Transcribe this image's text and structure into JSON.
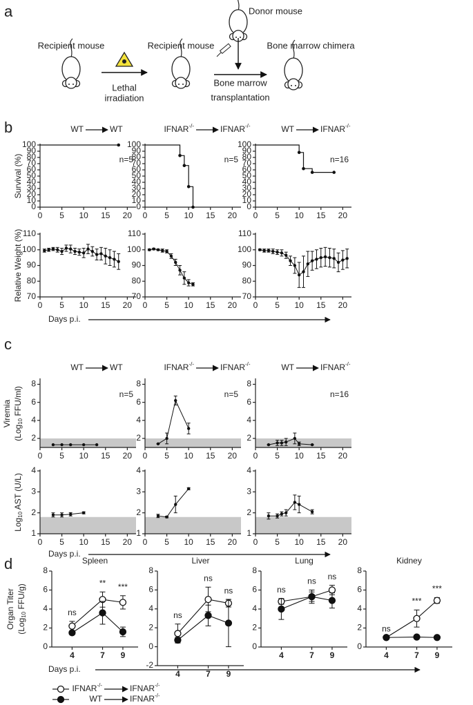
{
  "panel_labels": [
    "a",
    "b",
    "c",
    "d"
  ],
  "schematic": {
    "recipient_1": "Recipient mouse",
    "lethal": [
      "Lethal",
      "irradiation"
    ],
    "recipient_2": "Recipient mouse",
    "donor": "Donor mouse",
    "bmt": [
      "Bone marrow",
      "transplantation"
    ],
    "chimera": "Bone marrow chimera"
  },
  "groups": [
    {
      "from": [
        {
          "text": "WT"
        }
      ],
      "to": [
        {
          "text": "WT"
        }
      ]
    },
    {
      "from": [
        {
          "text": "IFNAR"
        },
        {
          "text": "-/-",
          "sup": true
        }
      ],
      "to": [
        {
          "text": "IFNAR"
        },
        {
          "text": "-/-",
          "sup": true
        }
      ]
    },
    {
      "from": [
        {
          "text": "WT"
        }
      ],
      "to": [
        {
          "text": "IFNAR"
        },
        {
          "text": "-/-",
          "sup": true
        }
      ]
    }
  ],
  "x_axis_label": "Days p.i.",
  "legend": [
    {
      "style": "open",
      "from": [
        {
          "text": "IFNAR"
        },
        {
          "text": "-/-",
          "sup": true
        }
      ],
      "to": [
        {
          "text": "IFNAR"
        },
        {
          "text": "-/-",
          "sup": true
        }
      ]
    },
    {
      "style": "filled",
      "from": [
        {
          "text": "WT"
        }
      ],
      "to": [
        {
          "text": "IFNAR"
        },
        {
          "text": "-/-",
          "sup": true
        }
      ]
    }
  ],
  "chart_data": [
    {
      "type": "step",
      "ylabel": [
        [
          {
            "text": "Survival (%)"
          }
        ]
      ],
      "x": [
        0,
        18
      ],
      "values": [
        100,
        100
      ],
      "xlim": [
        0,
        22
      ],
      "xticks": [
        0,
        5,
        10,
        15,
        20
      ],
      "ylim": [
        0,
        100
      ],
      "yticks": [
        0,
        10,
        20,
        30,
        40,
        50,
        60,
        70,
        80,
        90,
        100
      ],
      "annotation": "n=5"
    },
    {
      "type": "step",
      "x": [
        0,
        8,
        9,
        10,
        11
      ],
      "values": [
        100,
        83,
        67,
        33,
        0
      ],
      "xlim": [
        0,
        22
      ],
      "xticks": [
        0,
        5,
        10,
        15,
        20
      ],
      "ylim": [
        0,
        100
      ],
      "yticks": [
        0,
        10,
        20,
        30,
        40,
        50,
        60,
        70,
        80,
        90,
        100
      ],
      "annotation": "n=5"
    },
    {
      "type": "step",
      "x": [
        0,
        10,
        11,
        13,
        18
      ],
      "values": [
        100,
        88,
        62,
        56,
        56
      ],
      "xlim": [
        0,
        22
      ],
      "xticks": [
        0,
        5,
        10,
        15,
        20
      ],
      "ylim": [
        0,
        100
      ],
      "yticks": [
        0,
        10,
        20,
        30,
        40,
        50,
        60,
        70,
        80,
        90,
        100
      ],
      "annotation": "n=16"
    },
    {
      "type": "line",
      "ylabel": [
        [
          {
            "text": "Relative Weight (%)"
          }
        ]
      ],
      "x": [
        1,
        2,
        3,
        4,
        5,
        6,
        7,
        8,
        9,
        10,
        11,
        12,
        13,
        14,
        15,
        16,
        17,
        18
      ],
      "values": [
        99.5,
        100,
        100.5,
        100,
        99,
        101,
        100.5,
        99,
        98.5,
        98,
        100.5,
        99,
        97,
        97.5,
        96,
        95,
        94,
        92.5
      ],
      "errors": [
        1,
        1,
        1,
        1.5,
        2,
        2,
        2.5,
        2,
        2,
        3,
        3,
        3,
        3.5,
        4,
        5,
        5,
        5,
        5
      ],
      "xlim": [
        0,
        22
      ],
      "xticks": [
        0,
        5,
        10,
        15,
        20
      ],
      "ylim": [
        70,
        110
      ],
      "yticks": [
        70,
        80,
        90,
        100,
        110
      ]
    },
    {
      "type": "line",
      "x": [
        1,
        2,
        3,
        4,
        5,
        6,
        7,
        8,
        9,
        10,
        11
      ],
      "values": [
        100,
        100.5,
        100,
        99.5,
        99,
        96,
        92,
        87,
        82,
        79,
        78
      ],
      "errors": [
        0.5,
        0.5,
        0.5,
        1,
        1,
        1.5,
        2,
        3,
        4,
        2,
        1
      ],
      "xlim": [
        0,
        22
      ],
      "xticks": [
        0,
        5,
        10,
        15,
        20
      ],
      "ylim": [
        70,
        110
      ],
      "yticks": [
        70,
        80,
        90,
        100,
        110
      ]
    },
    {
      "type": "line",
      "x": [
        1,
        2,
        3,
        4,
        5,
        6,
        7,
        8,
        9,
        10,
        11,
        12,
        13,
        14,
        15,
        16,
        17,
        18,
        19,
        20,
        21
      ],
      "values": [
        100,
        99.5,
        99.5,
        99,
        98.5,
        98,
        96.5,
        93,
        90,
        84,
        86,
        91,
        93,
        94,
        95,
        95.5,
        95,
        94.5,
        92,
        93.5,
        94.5
      ],
      "errors": [
        0.5,
        1,
        1,
        1.5,
        1.5,
        2,
        2,
        3,
        5,
        8,
        10,
        8,
        6,
        6,
        6,
        6,
        6,
        6,
        6,
        6,
        6
      ],
      "xlim": [
        0,
        22
      ],
      "xticks": [
        0,
        5,
        10,
        15,
        20
      ],
      "ylim": [
        70,
        110
      ],
      "yticks": [
        70,
        80,
        90,
        100,
        110
      ]
    },
    {
      "type": "line",
      "ylabel": [
        [
          {
            "text": "Viremia"
          }
        ],
        [
          {
            "text": "(Log"
          },
          {
            "text": "10",
            "sub": true
          },
          {
            "text": " FFU/ml)"
          }
        ]
      ],
      "x": [
        3,
        5,
        7,
        10,
        13
      ],
      "values": [
        1.3,
        1.3,
        1.3,
        1.3,
        1.3
      ],
      "lod": 2,
      "xlim": [
        0,
        22
      ],
      "xticks": [
        0,
        5,
        10,
        15,
        20
      ],
      "ylim": [
        1,
        8.5
      ],
      "yticks": [
        2,
        4,
        6,
        8
      ],
      "annotation": "n=5"
    },
    {
      "type": "line",
      "x": [
        3,
        5,
        7,
        10
      ],
      "values": [
        1.4,
        2,
        6.2,
        3.1
      ],
      "errors": [
        0,
        0.6,
        0.5,
        0.6
      ],
      "lod": 2,
      "xlim": [
        0,
        22
      ],
      "xticks": [
        0,
        5,
        10,
        15,
        20
      ],
      "ylim": [
        1,
        8.5
      ],
      "yticks": [
        2,
        4,
        6,
        8
      ],
      "annotation": "n=5"
    },
    {
      "type": "line",
      "x": [
        3,
        5,
        6,
        7,
        9,
        10,
        13
      ],
      "values": [
        1.3,
        1.5,
        1.5,
        1.6,
        2,
        1.4,
        1.3
      ],
      "errors": [
        0,
        0.3,
        0.3,
        0.4,
        0.6,
        0.2,
        0
      ],
      "lod": 2,
      "xlim": [
        0,
        22
      ],
      "xticks": [
        0,
        5,
        10,
        15,
        20
      ],
      "ylim": [
        1,
        8.5
      ],
      "yticks": [
        2,
        4,
        6,
        8
      ],
      "annotation": "n=16"
    },
    {
      "type": "line",
      "ylabel": [
        [
          {
            "text": "Log"
          },
          {
            "text": "10",
            "sub": true
          },
          {
            "text": " AST (U/L)"
          }
        ]
      ],
      "x": [
        3,
        5,
        7,
        10
      ],
      "values": [
        1.9,
        1.9,
        1.93,
        2
      ],
      "errors": [
        0.1,
        0.1,
        0.08,
        0.05
      ],
      "lod": 1.8,
      "xlim": [
        0,
        22
      ],
      "xticks": [
        0,
        5,
        10,
        15,
        20
      ],
      "ylim": [
        1,
        4
      ],
      "yticks": [
        1,
        2,
        3,
        4
      ]
    },
    {
      "type": "line",
      "x": [
        3,
        5,
        7,
        10
      ],
      "values": [
        1.85,
        1.8,
        2.4,
        3.15
      ],
      "errors": [
        0.08,
        0.04,
        0.4,
        0.05
      ],
      "lod": 1.8,
      "xlim": [
        0,
        22
      ],
      "xticks": [
        0,
        5,
        10,
        15,
        20
      ],
      "ylim": [
        1,
        4
      ],
      "yticks": [
        1,
        2,
        3,
        4
      ]
    },
    {
      "type": "line",
      "x": [
        3,
        5,
        6,
        7,
        9,
        10,
        13
      ],
      "values": [
        1.85,
        1.85,
        1.95,
        2,
        2.5,
        2.4,
        2.05
      ],
      "errors": [
        0.15,
        0.1,
        0.1,
        0.15,
        0.35,
        0.4,
        0.1
      ],
      "lod": 1.8,
      "xlim": [
        0,
        22
      ],
      "xticks": [
        0,
        5,
        10,
        15,
        20
      ],
      "ylim": [
        1,
        4
      ],
      "yticks": [
        1,
        2,
        3,
        4
      ]
    },
    {
      "type": "organ",
      "title": "Spleen",
      "ylabel": [
        [
          {
            "text": "Organ Titer"
          }
        ],
        [
          {
            "text": "(Log"
          },
          {
            "text": "10",
            "sub": true
          },
          {
            "text": " FFU/g)"
          }
        ]
      ],
      "x": [
        4,
        7,
        9
      ],
      "xlim": [
        2,
        10.5
      ],
      "xticks": [
        4,
        7,
        9
      ],
      "ylim": [
        0,
        8
      ],
      "yticks": [
        0,
        2,
        4,
        6,
        8
      ],
      "series": [
        {
          "style": "open",
          "values": [
            2.2,
            5,
            4.7
          ],
          "errors": [
            0.5,
            0.8,
            0.7
          ]
        },
        {
          "style": "filled",
          "values": [
            1.5,
            3.6,
            1.6
          ],
          "errors": [
            0.2,
            1.2,
            0.5
          ]
        }
      ],
      "significance": [
        "ns",
        "**",
        "***"
      ]
    },
    {
      "type": "organ",
      "title": "Liver",
      "x": [
        4,
        7,
        9
      ],
      "xlim": [
        2,
        10.5
      ],
      "xticks": [
        4,
        7,
        9
      ],
      "ylim": [
        -2,
        8
      ],
      "yticks": [
        -2,
        0,
        2,
        4,
        6,
        8
      ],
      "series": [
        {
          "style": "open",
          "values": [
            1.4,
            5,
            4.6
          ],
          "errors": [
            1,
            1.3,
            0.4
          ]
        },
        {
          "style": "filled",
          "values": [
            0.7,
            3.3,
            2.5
          ],
          "errors": [
            0.3,
            1.1,
            2.5
          ]
        }
      ],
      "significance": [
        "ns",
        "ns",
        "ns"
      ]
    },
    {
      "type": "organ",
      "title": "Lung",
      "x": [
        4,
        7,
        9
      ],
      "xlim": [
        2,
        10.5
      ],
      "xticks": [
        4,
        7,
        9
      ],
      "ylim": [
        0,
        8
      ],
      "yticks": [
        0,
        2,
        4,
        6,
        8
      ],
      "series": [
        {
          "style": "open",
          "values": [
            4.8,
            5.3,
            6
          ],
          "errors": [
            0.3,
            0.5,
            0.5
          ]
        },
        {
          "style": "filled",
          "values": [
            4,
            5.3,
            4.9
          ],
          "errors": [
            1.1,
            0.7,
            0.8
          ]
        }
      ],
      "significance": [
        "ns",
        "ns",
        "ns"
      ]
    },
    {
      "type": "organ",
      "title": "Kidney",
      "x": [
        4,
        7,
        9
      ],
      "xlim": [
        2,
        10.5
      ],
      "xticks": [
        4,
        7,
        9
      ],
      "ylim": [
        0,
        8
      ],
      "yticks": [
        0,
        2,
        4,
        6,
        8
      ],
      "series": [
        {
          "style": "open",
          "values": [
            1,
            3,
            4.9
          ],
          "errors": [
            0,
            0.9,
            0.3
          ]
        },
        {
          "style": "filled",
          "values": [
            1,
            1.05,
            1
          ],
          "errors": [
            0,
            0.1,
            0.05
          ]
        }
      ],
      "significance": [
        "ns",
        "***",
        "***"
      ]
    }
  ]
}
